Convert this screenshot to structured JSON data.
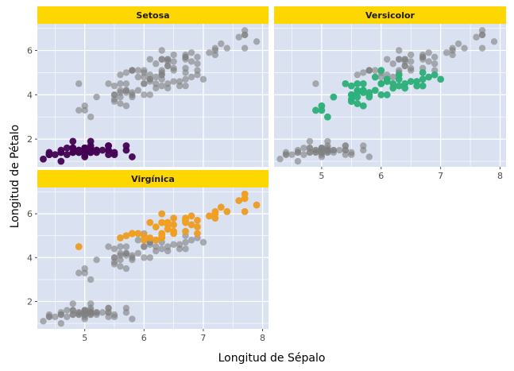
{
  "chart_data": {
    "type": "scatter",
    "xlabel": "Longitud de Sépalo",
    "ylabel": "Longitud de Pétalo",
    "xlim": [
      4.2,
      8.1
    ],
    "ylim": [
      0.75,
      7.2
    ],
    "x_ticks": [
      5,
      6,
      7,
      8
    ],
    "y_ticks": [
      2,
      4,
      6
    ],
    "grid": true,
    "colors": {
      "panel_bg": "#dae1f1",
      "grid": "#ffffff",
      "strip_bg": "#ffd700",
      "background_points": "#7f7f7f",
      "setosa": "#440154",
      "versicolor": "#2ab27a",
      "virginica": "#f2a01f"
    },
    "panels": [
      {
        "title": "Setosa",
        "color_key": "setosa"
      },
      {
        "title": "Versicolor",
        "color_key": "versicolor"
      },
      {
        "title": "Virgínica",
        "color_key": "virginica"
      }
    ],
    "series": [
      {
        "key": "setosa",
        "points": [
          [
            5.1,
            1.4
          ],
          [
            4.9,
            1.4
          ],
          [
            4.7,
            1.3
          ],
          [
            4.6,
            1.5
          ],
          [
            5.0,
            1.4
          ],
          [
            5.4,
            1.7
          ],
          [
            4.6,
            1.4
          ],
          [
            5.0,
            1.5
          ],
          [
            4.4,
            1.4
          ],
          [
            4.9,
            1.5
          ],
          [
            5.4,
            1.5
          ],
          [
            4.8,
            1.6
          ],
          [
            4.8,
            1.4
          ],
          [
            4.3,
            1.1
          ],
          [
            5.8,
            1.2
          ],
          [
            5.7,
            1.5
          ],
          [
            5.4,
            1.3
          ],
          [
            5.1,
            1.4
          ],
          [
            5.7,
            1.7
          ],
          [
            5.1,
            1.5
          ],
          [
            5.4,
            1.7
          ],
          [
            5.1,
            1.5
          ],
          [
            4.6,
            1.0
          ],
          [
            5.1,
            1.7
          ],
          [
            4.8,
            1.9
          ],
          [
            5.0,
            1.6
          ],
          [
            5.0,
            1.6
          ],
          [
            5.2,
            1.5
          ],
          [
            5.2,
            1.4
          ],
          [
            4.7,
            1.6
          ],
          [
            4.8,
            1.6
          ],
          [
            5.4,
            1.5
          ],
          [
            5.2,
            1.5
          ],
          [
            5.5,
            1.4
          ],
          [
            4.9,
            1.5
          ],
          [
            5.0,
            1.2
          ],
          [
            5.5,
            1.3
          ],
          [
            4.9,
            1.4
          ],
          [
            4.4,
            1.3
          ],
          [
            5.1,
            1.5
          ],
          [
            5.0,
            1.3
          ],
          [
            4.5,
            1.3
          ],
          [
            4.4,
            1.3
          ],
          [
            5.0,
            1.6
          ],
          [
            5.1,
            1.9
          ],
          [
            4.8,
            1.4
          ],
          [
            5.1,
            1.6
          ],
          [
            4.6,
            1.4
          ],
          [
            5.3,
            1.5
          ],
          [
            5.0,
            1.4
          ]
        ]
      },
      {
        "key": "versicolor",
        "points": [
          [
            7.0,
            4.7
          ],
          [
            6.4,
            4.5
          ],
          [
            6.9,
            4.9
          ],
          [
            5.5,
            4.0
          ],
          [
            6.5,
            4.6
          ],
          [
            5.7,
            4.5
          ],
          [
            6.3,
            4.7
          ],
          [
            4.9,
            3.3
          ],
          [
            6.6,
            4.6
          ],
          [
            5.2,
            3.9
          ],
          [
            5.0,
            3.5
          ],
          [
            5.9,
            4.2
          ],
          [
            6.0,
            4.0
          ],
          [
            6.1,
            4.7
          ],
          [
            5.6,
            3.6
          ],
          [
            6.7,
            4.4
          ],
          [
            5.6,
            4.5
          ],
          [
            5.8,
            4.1
          ],
          [
            6.2,
            4.5
          ],
          [
            5.6,
            3.9
          ],
          [
            5.9,
            4.8
          ],
          [
            6.1,
            4.0
          ],
          [
            6.3,
            4.9
          ],
          [
            6.1,
            4.7
          ],
          [
            6.4,
            4.3
          ],
          [
            6.6,
            4.4
          ],
          [
            6.8,
            4.8
          ],
          [
            6.7,
            5.0
          ],
          [
            6.0,
            4.5
          ],
          [
            5.7,
            3.5
          ],
          [
            5.5,
            3.8
          ],
          [
            5.5,
            3.7
          ],
          [
            5.8,
            3.9
          ],
          [
            6.0,
            5.1
          ],
          [
            5.4,
            4.5
          ],
          [
            6.0,
            4.5
          ],
          [
            6.7,
            4.7
          ],
          [
            6.3,
            4.4
          ],
          [
            5.6,
            4.1
          ],
          [
            5.5,
            4.0
          ],
          [
            5.5,
            4.4
          ],
          [
            6.1,
            4.6
          ],
          [
            5.8,
            4.0
          ],
          [
            5.0,
            3.3
          ],
          [
            5.6,
            4.2
          ],
          [
            5.7,
            4.2
          ],
          [
            5.7,
            4.2
          ],
          [
            6.2,
            4.3
          ],
          [
            5.1,
            3.0
          ],
          [
            5.7,
            4.1
          ]
        ]
      },
      {
        "key": "virginica",
        "points": [
          [
            6.3,
            6.0
          ],
          [
            5.8,
            5.1
          ],
          [
            7.1,
            5.9
          ],
          [
            6.3,
            5.6
          ],
          [
            6.5,
            5.8
          ],
          [
            7.6,
            6.6
          ],
          [
            4.9,
            4.5
          ],
          [
            7.3,
            6.3
          ],
          [
            6.7,
            5.8
          ],
          [
            7.2,
            6.1
          ],
          [
            6.5,
            5.1
          ],
          [
            6.4,
            5.3
          ],
          [
            6.8,
            5.5
          ],
          [
            5.7,
            5.0
          ],
          [
            5.8,
            5.1
          ],
          [
            6.4,
            5.3
          ],
          [
            6.5,
            5.5
          ],
          [
            7.7,
            6.7
          ],
          [
            7.7,
            6.9
          ],
          [
            6.0,
            5.0
          ],
          [
            6.9,
            5.7
          ],
          [
            5.6,
            4.9
          ],
          [
            7.7,
            6.7
          ],
          [
            6.3,
            4.9
          ],
          [
            6.7,
            5.7
          ],
          [
            7.2,
            6.0
          ],
          [
            6.2,
            4.8
          ],
          [
            6.1,
            4.9
          ],
          [
            6.4,
            5.6
          ],
          [
            7.2,
            5.8
          ],
          [
            7.4,
            6.1
          ],
          [
            7.9,
            6.4
          ],
          [
            6.4,
            5.6
          ],
          [
            6.3,
            5.1
          ],
          [
            6.1,
            5.6
          ],
          [
            7.7,
            6.1
          ],
          [
            6.3,
            5.6
          ],
          [
            6.4,
            5.5
          ],
          [
            6.0,
            4.8
          ],
          [
            6.9,
            5.4
          ],
          [
            6.7,
            5.6
          ],
          [
            6.9,
            5.1
          ],
          [
            5.8,
            5.1
          ],
          [
            6.8,
            5.9
          ],
          [
            6.7,
            5.7
          ],
          [
            6.7,
            5.2
          ],
          [
            6.3,
            5.0
          ],
          [
            6.5,
            5.2
          ],
          [
            6.2,
            5.4
          ],
          [
            5.9,
            5.1
          ]
        ]
      }
    ]
  }
}
